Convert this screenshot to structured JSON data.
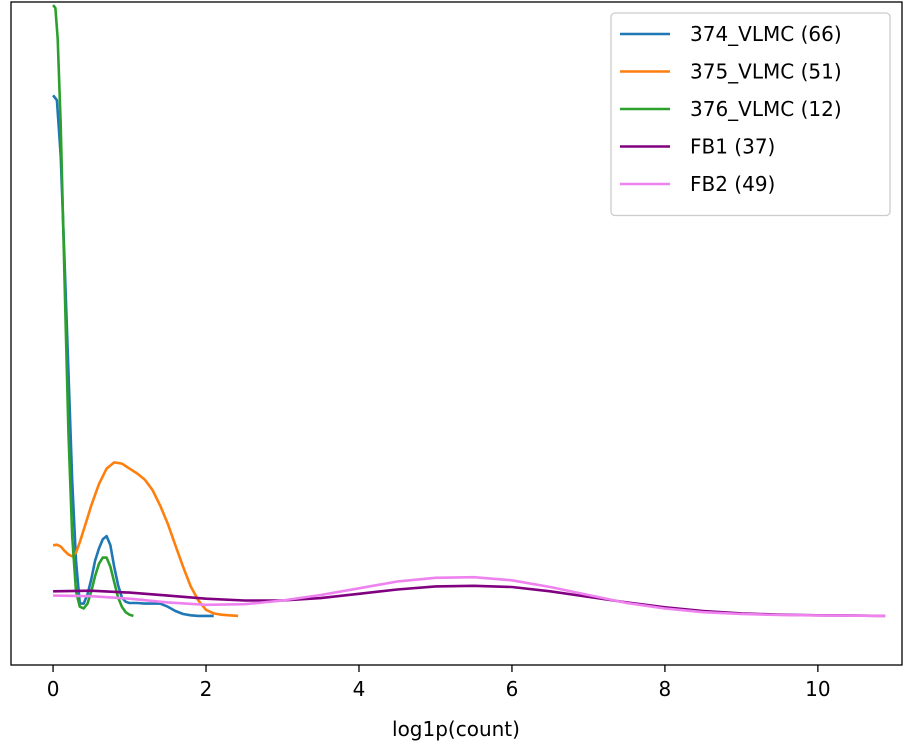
{
  "chart_data": {
    "type": "line",
    "title": "",
    "xlabel": "log1p(count)",
    "ylabel": "",
    "xlim": [
      -0.55,
      11.1
    ],
    "ylim": [
      -0.08,
      1.0
    ],
    "x_ticks": [
      0,
      2,
      4,
      6,
      8,
      10
    ],
    "x_tick_labels": [
      "0",
      "2",
      "4",
      "6",
      "8",
      "10"
    ],
    "y_ticks_visible": false,
    "grid": false,
    "legend_placement": "top-right",
    "series": [
      {
        "name": "374_VLMC (66)",
        "color": "#1f77b4",
        "x": [
          0.0,
          0.05,
          0.1,
          0.15,
          0.2,
          0.25,
          0.3,
          0.35,
          0.4,
          0.45,
          0.5,
          0.55,
          0.6,
          0.65,
          0.7,
          0.75,
          0.8,
          0.85,
          0.9,
          0.95,
          1.0,
          1.1,
          1.2,
          1.3,
          1.4,
          1.5,
          1.6,
          1.7,
          1.8,
          1.9,
          2.0,
          2.1
        ],
        "y": [
          0.848,
          0.84,
          0.75,
          0.58,
          0.4,
          0.22,
          0.09,
          0.02,
          0.02,
          0.035,
          0.06,
          0.09,
          0.11,
          0.125,
          0.13,
          0.115,
          0.08,
          0.05,
          0.03,
          0.023,
          0.021,
          0.021,
          0.02,
          0.02,
          0.02,
          0.015,
          0.008,
          0.003,
          0.001,
          0.0,
          0.0,
          0.0
        ]
      },
      {
        "name": "375_VLMC (51)",
        "color": "#ff7f0e",
        "x": [
          0.0,
          0.05,
          0.1,
          0.15,
          0.2,
          0.25,
          0.3,
          0.35,
          0.4,
          0.45,
          0.5,
          0.6,
          0.7,
          0.8,
          0.9,
          1.0,
          1.1,
          1.2,
          1.3,
          1.4,
          1.5,
          1.6,
          1.7,
          1.8,
          1.9,
          2.0,
          2.1,
          2.2,
          2.3,
          2.42
        ],
        "y": [
          0.115,
          0.116,
          0.113,
          0.106,
          0.1,
          0.097,
          0.103,
          0.12,
          0.14,
          0.16,
          0.18,
          0.215,
          0.24,
          0.25,
          0.248,
          0.24,
          0.232,
          0.222,
          0.205,
          0.18,
          0.15,
          0.115,
          0.08,
          0.048,
          0.025,
          0.01,
          0.004,
          0.002,
          0.001,
          0.0
        ]
      },
      {
        "name": "376_VLMC (12)",
        "color": "#2ca02c",
        "x": [
          0.0,
          0.03,
          0.06,
          0.1,
          0.15,
          0.2,
          0.25,
          0.3,
          0.35,
          0.4,
          0.45,
          0.5,
          0.55,
          0.6,
          0.65,
          0.7,
          0.75,
          0.8,
          0.85,
          0.9,
          0.95,
          1.0,
          1.05
        ],
        "y": [
          0.995,
          0.99,
          0.94,
          0.8,
          0.55,
          0.3,
          0.13,
          0.04,
          0.015,
          0.012,
          0.02,
          0.04,
          0.065,
          0.085,
          0.095,
          0.095,
          0.08,
          0.055,
          0.03,
          0.015,
          0.006,
          0.002,
          0.0
        ]
      },
      {
        "name": "FB1 (37)",
        "color": "#800080",
        "x": [
          0.0,
          0.5,
          1.0,
          1.5,
          2.0,
          2.5,
          3.0,
          3.5,
          4.0,
          4.5,
          5.0,
          5.5,
          6.0,
          6.5,
          7.0,
          7.5,
          8.0,
          8.5,
          9.0,
          9.5,
          10.0,
          10.5,
          10.88
        ],
        "y": [
          0.04,
          0.041,
          0.038,
          0.033,
          0.028,
          0.025,
          0.025,
          0.029,
          0.036,
          0.043,
          0.048,
          0.049,
          0.047,
          0.04,
          0.031,
          0.022,
          0.014,
          0.008,
          0.004,
          0.002,
          0.001,
          0.0005,
          0.0
        ]
      },
      {
        "name": "FB2 (49)",
        "color": "#ee82ee",
        "x": [
          0.0,
          0.5,
          1.0,
          1.5,
          2.0,
          2.5,
          3.0,
          3.5,
          4.0,
          4.5,
          5.0,
          5.5,
          6.0,
          6.5,
          7.0,
          7.5,
          8.0,
          8.5,
          9.0,
          9.5,
          10.0,
          10.5,
          10.88
        ],
        "y": [
          0.033,
          0.032,
          0.028,
          0.022,
          0.018,
          0.019,
          0.025,
          0.034,
          0.045,
          0.056,
          0.062,
          0.063,
          0.058,
          0.047,
          0.034,
          0.021,
          0.012,
          0.006,
          0.003,
          0.0015,
          0.0008,
          0.0003,
          0.0
        ]
      }
    ]
  }
}
